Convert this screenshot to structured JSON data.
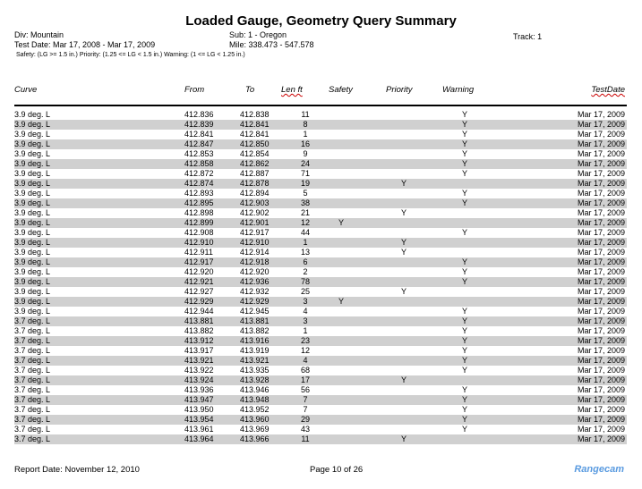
{
  "title": "Loaded Gauge, Geometry Query Summary",
  "meta": {
    "div": "Div: Mountain",
    "sub": "Sub: 1 - Oregon",
    "track": "Track: 1",
    "test_date": "Test Date: Mar 17, 2008 - Mar 17, 2009",
    "mile": "Mile: 338.473 - 547.578",
    "legend": "Safety: (LG >= 1.5 in.)  Priority: (1.25 <= LG < 1.5 in.)  Warning: (1 <= LG < 1.25 in.)"
  },
  "columns": {
    "curve": "Curve",
    "from": "From",
    "to": "To",
    "len": "Len ft",
    "safety": "Safety",
    "priority": "Priority",
    "warning": "Warning",
    "date": "TestDate"
  },
  "rows": [
    [
      "3.9 deg. L",
      "412.836",
      "412.838",
      "11",
      "",
      "",
      "Y",
      "Mar 17, 2009"
    ],
    [
      "3.9 deg. L",
      "412.839",
      "412.841",
      "8",
      "",
      "",
      "Y",
      "Mar 17, 2009"
    ],
    [
      "3.9 deg. L",
      "412.841",
      "412.841",
      "1",
      "",
      "",
      "Y",
      "Mar 17, 2009"
    ],
    [
      "3.9 deg. L",
      "412.847",
      "412.850",
      "16",
      "",
      "",
      "Y",
      "Mar 17, 2009"
    ],
    [
      "3.9 deg. L",
      "412.853",
      "412.854",
      "9",
      "",
      "",
      "Y",
      "Mar 17, 2009"
    ],
    [
      "3.9 deg. L",
      "412.858",
      "412.862",
      "24",
      "",
      "",
      "Y",
      "Mar 17, 2009"
    ],
    [
      "3.9 deg. L",
      "412.872",
      "412.887",
      "71",
      "",
      "",
      "Y",
      "Mar 17, 2009"
    ],
    [
      "3.9 deg. L",
      "412.874",
      "412.878",
      "19",
      "",
      "Y",
      "",
      "Mar 17, 2009"
    ],
    [
      "3.9 deg. L",
      "412.893",
      "412.894",
      "5",
      "",
      "",
      "Y",
      "Mar 17, 2009"
    ],
    [
      "3.9 deg. L",
      "412.895",
      "412.903",
      "38",
      "",
      "",
      "Y",
      "Mar 17, 2009"
    ],
    [
      "3.9 deg. L",
      "412.898",
      "412.902",
      "21",
      "",
      "Y",
      "",
      "Mar 17, 2009"
    ],
    [
      "3.9 deg. L",
      "412.899",
      "412.901",
      "12",
      "Y",
      "",
      "",
      "Mar 17, 2009"
    ],
    [
      "3.9 deg. L",
      "412.908",
      "412.917",
      "44",
      "",
      "",
      "Y",
      "Mar 17, 2009"
    ],
    [
      "3.9 deg. L",
      "412.910",
      "412.910",
      "1",
      "",
      "Y",
      "",
      "Mar 17, 2009"
    ],
    [
      "3.9 deg. L",
      "412.911",
      "412.914",
      "13",
      "",
      "Y",
      "",
      "Mar 17, 2009"
    ],
    [
      "3.9 deg. L",
      "412.917",
      "412.918",
      "6",
      "",
      "",
      "Y",
      "Mar 17, 2009"
    ],
    [
      "3.9 deg. L",
      "412.920",
      "412.920",
      "2",
      "",
      "",
      "Y",
      "Mar 17, 2009"
    ],
    [
      "3.9 deg. L",
      "412.921",
      "412.936",
      "78",
      "",
      "",
      "Y",
      "Mar 17, 2009"
    ],
    [
      "3.9 deg. L",
      "412.927",
      "412.932",
      "25",
      "",
      "Y",
      "",
      "Mar 17, 2009"
    ],
    [
      "3.9 deg. L",
      "412.929",
      "412.929",
      "3",
      "Y",
      "",
      "",
      "Mar 17, 2009"
    ],
    [
      "3.9 deg. L",
      "412.944",
      "412.945",
      "4",
      "",
      "",
      "Y",
      "Mar 17, 2009"
    ],
    [
      "3.7 deg. L",
      "413.881",
      "413.881",
      "3",
      "",
      "",
      "Y",
      "Mar 17, 2009"
    ],
    [
      "3.7 deg. L",
      "413.882",
      "413.882",
      "1",
      "",
      "",
      "Y",
      "Mar 17, 2009"
    ],
    [
      "3.7 deg. L",
      "413.912",
      "413.916",
      "23",
      "",
      "",
      "Y",
      "Mar 17, 2009"
    ],
    [
      "3.7 deg. L",
      "413.917",
      "413.919",
      "12",
      "",
      "",
      "Y",
      "Mar 17, 2009"
    ],
    [
      "3.7 deg. L",
      "413.921",
      "413.921",
      "4",
      "",
      "",
      "Y",
      "Mar 17, 2009"
    ],
    [
      "3.7 deg. L",
      "413.922",
      "413.935",
      "68",
      "",
      "",
      "Y",
      "Mar 17, 2009"
    ],
    [
      "3.7 deg. L",
      "413.924",
      "413.928",
      "17",
      "",
      "Y",
      "",
      "Mar 17, 2009"
    ],
    [
      "3.7 deg. L",
      "413.936",
      "413.946",
      "56",
      "",
      "",
      "Y",
      "Mar 17, 2009"
    ],
    [
      "3.7 deg. L",
      "413.947",
      "413.948",
      "7",
      "",
      "",
      "Y",
      "Mar 17, 2009"
    ],
    [
      "3.7 deg. L",
      "413.950",
      "413.952",
      "7",
      "",
      "",
      "Y",
      "Mar 17, 2009"
    ],
    [
      "3.7 deg. L",
      "413.954",
      "413.960",
      "29",
      "",
      "",
      "Y",
      "Mar 17, 2009"
    ],
    [
      "3.7 deg. L",
      "413.961",
      "413.969",
      "43",
      "",
      "",
      "Y",
      "Mar 17, 2009"
    ],
    [
      "3.7 deg. L",
      "413.964",
      "413.966",
      "11",
      "",
      "Y",
      "",
      "Mar 17, 2009"
    ]
  ],
  "footer": {
    "report_date": "Report Date:  November 12, 2010",
    "page": "Page 10 of 26",
    "logo": "Rangecam"
  },
  "colors": {
    "row_alt": "#d0d0d0",
    "logo": "#5a9be0"
  }
}
